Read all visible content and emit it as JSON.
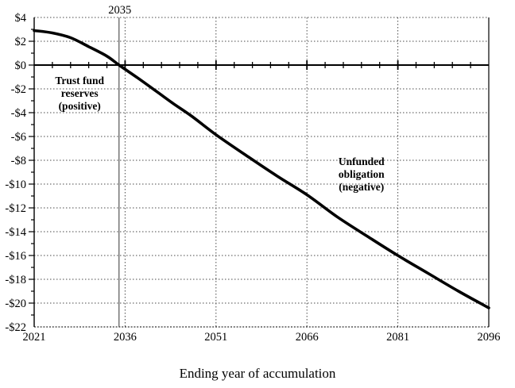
{
  "chart_data": {
    "type": "line",
    "title": "",
    "xlabel": "Ending year of accumulation",
    "ylabel": "",
    "xlim": [
      2021,
      2096
    ],
    "ylim": [
      -22,
      4
    ],
    "x_major_ticks": [
      2021,
      2036,
      2051,
      2066,
      2081,
      2096
    ],
    "x_minor_tick_step_years": 3,
    "y_major_tick_step": 2,
    "y_minor_tick_step": 1,
    "y_tick_labels": [
      "$4",
      "$2",
      "$0",
      "-$2",
      "-$4",
      "-$6",
      "-$8",
      "-$10",
      "-$12",
      "-$14",
      "-$16",
      "-$18",
      "-$20",
      "-$22"
    ],
    "y_tick_values": [
      4,
      2,
      0,
      -2,
      -4,
      -6,
      -8,
      -10,
      -12,
      -14,
      -16,
      -18,
      -20,
      -22
    ],
    "grid": "dotted horizontal and vertical gridlines",
    "legend": "none",
    "zero_line": true,
    "reference_line": {
      "x": 2035,
      "label": "2035"
    },
    "annotations": [
      {
        "name": "trust-fund-label",
        "lines": [
          "Trust fund",
          "reserves",
          "(positive)"
        ],
        "x": 2028.5,
        "y": -2.33
      },
      {
        "name": "unfunded-obligation-label",
        "lines": [
          "Unfunded",
          "obligation",
          "(negative)"
        ],
        "x": 2075,
        "y": -9.13
      }
    ],
    "series": [
      {
        "name": "trust-fund-reserves-and-unfunded-obligation",
        "x": [
          2021,
          2024,
          2027,
          2030,
          2033,
          2035,
          2038,
          2041,
          2044,
          2047,
          2051,
          2056,
          2061,
          2066,
          2071,
          2076,
          2081,
          2086,
          2091,
          2096
        ],
        "y": [
          2.9,
          2.7,
          2.3,
          1.55,
          0.75,
          0.0,
          -1.05,
          -2.15,
          -3.25,
          -4.3,
          -5.85,
          -7.6,
          -9.3,
          -10.9,
          -12.75,
          -14.4,
          -16.0,
          -17.5,
          -19.0,
          -20.4
        ],
        "color": "#000000",
        "stroke_width": 3.6
      }
    ],
    "colors": {
      "background": "#ffffff",
      "axis": "#000000",
      "grid": "#4a4a4a",
      "reference_line": "#333333",
      "text": "#000000"
    }
  }
}
